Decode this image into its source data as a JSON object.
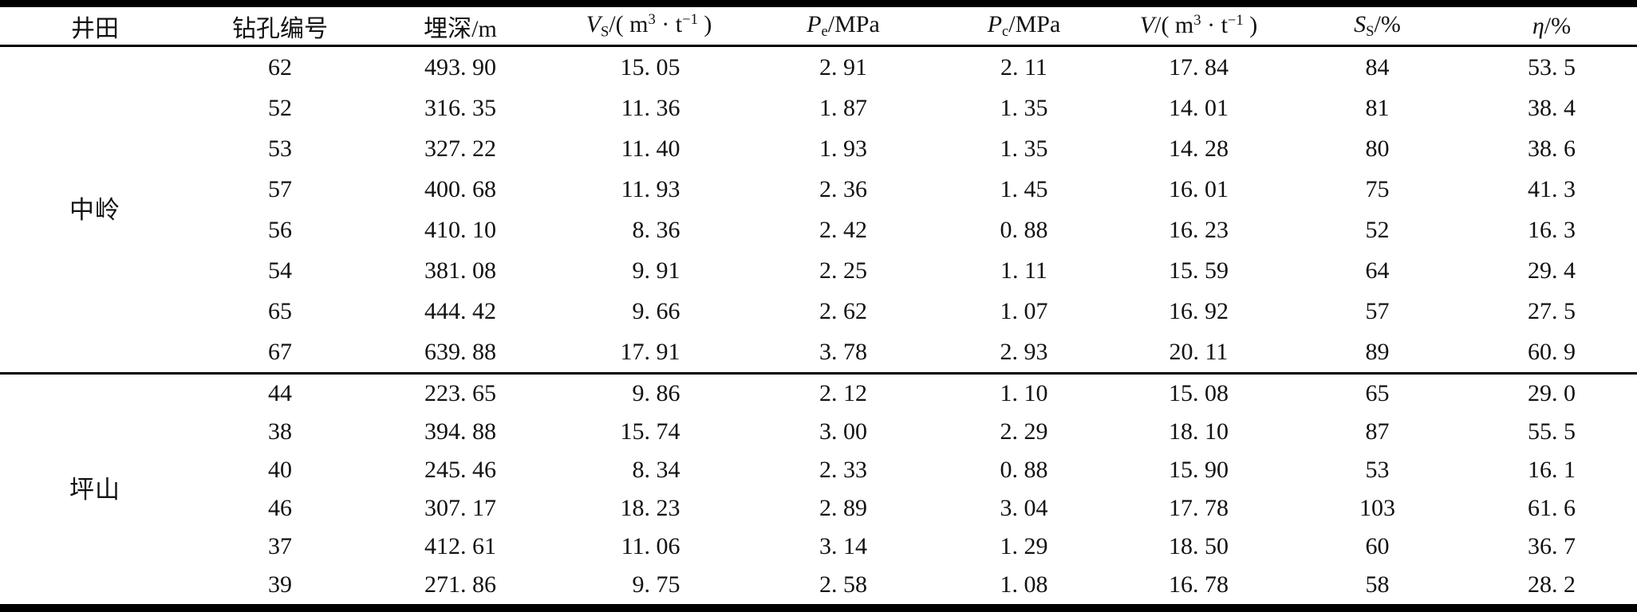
{
  "table": {
    "columns": [
      {
        "key": "field",
        "label_parts": [
          {
            "t": "井田"
          }
        ]
      },
      {
        "key": "hole",
        "label_parts": [
          {
            "t": "钻孔编号"
          }
        ]
      },
      {
        "key": "depth",
        "label_parts": [
          {
            "t": "埋深/m"
          }
        ]
      },
      {
        "key": "vs",
        "label_parts": [
          {
            "t": "V",
            "s": "it"
          },
          {
            "t": "S",
            "s": "sb"
          },
          {
            "t": "/( m"
          },
          {
            "t": "3",
            "s": "sp"
          },
          {
            "t": " · t"
          },
          {
            "t": "−1",
            "s": "sp"
          },
          {
            "t": " )"
          }
        ]
      },
      {
        "key": "pe",
        "label_parts": [
          {
            "t": "P",
            "s": "it"
          },
          {
            "t": "e",
            "s": "sb"
          },
          {
            "t": "/MPa"
          }
        ]
      },
      {
        "key": "pc",
        "label_parts": [
          {
            "t": "P",
            "s": "it"
          },
          {
            "t": "c",
            "s": "sb"
          },
          {
            "t": "/MPa"
          }
        ]
      },
      {
        "key": "v",
        "label_parts": [
          {
            "t": "V",
            "s": "it"
          },
          {
            "t": "/( m"
          },
          {
            "t": "3",
            "s": "sp"
          },
          {
            "t": " · t"
          },
          {
            "t": "−1",
            "s": "sp"
          },
          {
            "t": " )"
          }
        ]
      },
      {
        "key": "ss",
        "label_parts": [
          {
            "t": "S",
            "s": "it"
          },
          {
            "t": "S",
            "s": "sb"
          },
          {
            "t": "/%"
          }
        ]
      },
      {
        "key": "eta",
        "label_parts": [
          {
            "t": "η",
            "s": "it"
          },
          {
            "t": "/%"
          }
        ]
      }
    ],
    "groups": [
      {
        "name": "中岭",
        "id": "zhongling",
        "rows": [
          [
            "62",
            "493. 90",
            "15. 05",
            "2. 91",
            "2. 11",
            "17. 84",
            "84",
            "53. 5"
          ],
          [
            "52",
            "316. 35",
            "11. 36",
            "1. 87",
            "1. 35",
            "14. 01",
            "81",
            "38. 4"
          ],
          [
            "53",
            "327. 22",
            "11. 40",
            "1. 93",
            "1. 35",
            "14. 28",
            "80",
            "38. 6"
          ],
          [
            "57",
            "400. 68",
            "11. 93",
            "2. 36",
            "1. 45",
            "16. 01",
            "75",
            "41. 3"
          ],
          [
            "56",
            "410. 10",
            "8. 36",
            "2. 42",
            "0. 88",
            "16. 23",
            "52",
            "16. 3"
          ],
          [
            "54",
            "381. 08",
            "9. 91",
            "2. 25",
            "1. 11",
            "15. 59",
            "64",
            "29. 4"
          ],
          [
            "65",
            "444. 42",
            "9. 66",
            "2. 62",
            "1. 07",
            "16. 92",
            "57",
            "27. 5"
          ],
          [
            "67",
            "639. 88",
            "17. 91",
            "3. 78",
            "2. 93",
            "20. 11",
            "89",
            "60. 9"
          ]
        ]
      },
      {
        "name": "坪山",
        "id": "pingshan",
        "rows": [
          [
            "44",
            "223. 65",
            "9. 86",
            "2. 12",
            "1. 10",
            "15. 08",
            "65",
            "29. 0"
          ],
          [
            "38",
            "394. 88",
            "15. 74",
            "3. 00",
            "2. 29",
            "18. 10",
            "87",
            "55. 5"
          ],
          [
            "40",
            "245. 46",
            "8. 34",
            "2. 33",
            "0. 88",
            "15. 90",
            "53",
            "16. 1"
          ],
          [
            "46",
            "307. 17",
            "18. 23",
            "2. 89",
            "3. 04",
            "17. 78",
            "103",
            "61. 6"
          ],
          [
            "37",
            "412. 61",
            "11. 06",
            "3. 14",
            "1. 29",
            "18. 50",
            "60",
            "36. 7"
          ],
          [
            "39",
            "271. 86",
            "9. 75",
            "2. 58",
            "1. 08",
            "16. 78",
            "58",
            "28. 2"
          ]
        ]
      }
    ]
  }
}
